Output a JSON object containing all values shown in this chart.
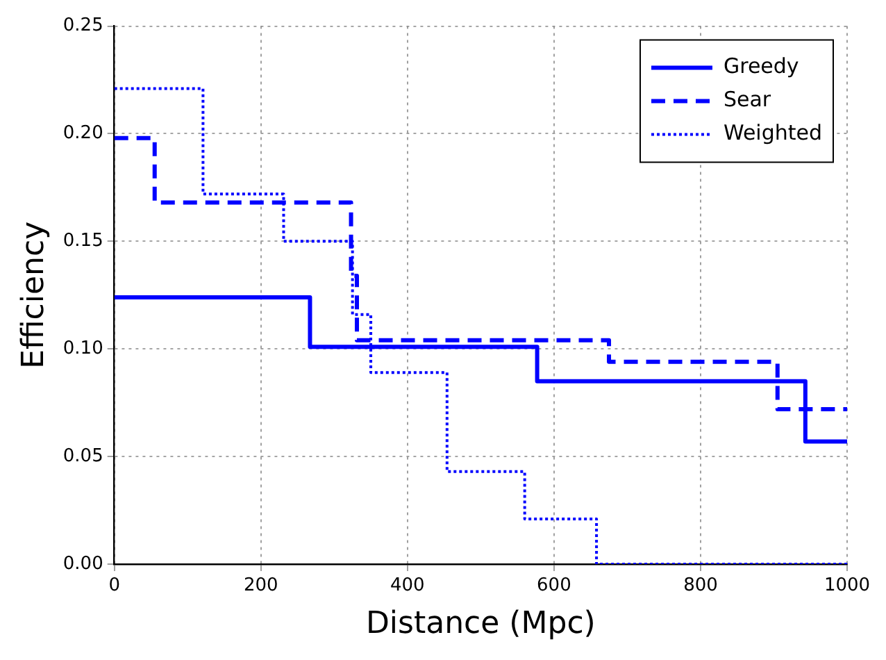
{
  "chart_data": {
    "type": "step",
    "xlabel": "Distance (Mpc)",
    "ylabel": "Efficiency",
    "xlim": [
      0,
      1000
    ],
    "ylim": [
      0,
      0.25
    ],
    "xticks": [
      0,
      200,
      400,
      600,
      800,
      1000
    ],
    "yticks": [
      {
        "value": 0,
        "label": "0.00"
      },
      {
        "value": 0.05,
        "label": "0.05"
      },
      {
        "value": 0.1,
        "label": "0.10"
      },
      {
        "value": 0.15,
        "label": "0.15"
      },
      {
        "value": 0.2,
        "label": "0.20"
      },
      {
        "value": 0.25,
        "label": "0.25"
      }
    ],
    "grid": true,
    "legend": "top right",
    "marker": "none",
    "series": [
      {
        "name": "Greedy",
        "color": "#0000ff",
        "line_style": "solid",
        "x": [
          0,
          267,
          577,
          943,
          1000
        ],
        "values": [
          0.124,
          0.101,
          0.085,
          0.057,
          0.057
        ]
      },
      {
        "name": "Sear",
        "color": "#0000ff",
        "line_style": "dashed",
        "x": [
          0,
          55,
          323,
          331,
          675,
          905,
          1000
        ],
        "values": [
          0.198,
          0.168,
          0.134,
          0.104,
          0.094,
          0.072,
          0.072
        ]
      },
      {
        "name": "Weighted",
        "color": "#0000ff",
        "line_style": "dotted",
        "x": [
          0,
          121,
          231,
          325,
          350,
          454,
          560,
          658,
          1000
        ],
        "values": [
          0.221,
          0.172,
          0.15,
          0.116,
          0.089,
          0.043,
          0.021,
          0,
          0
        ]
      }
    ]
  }
}
